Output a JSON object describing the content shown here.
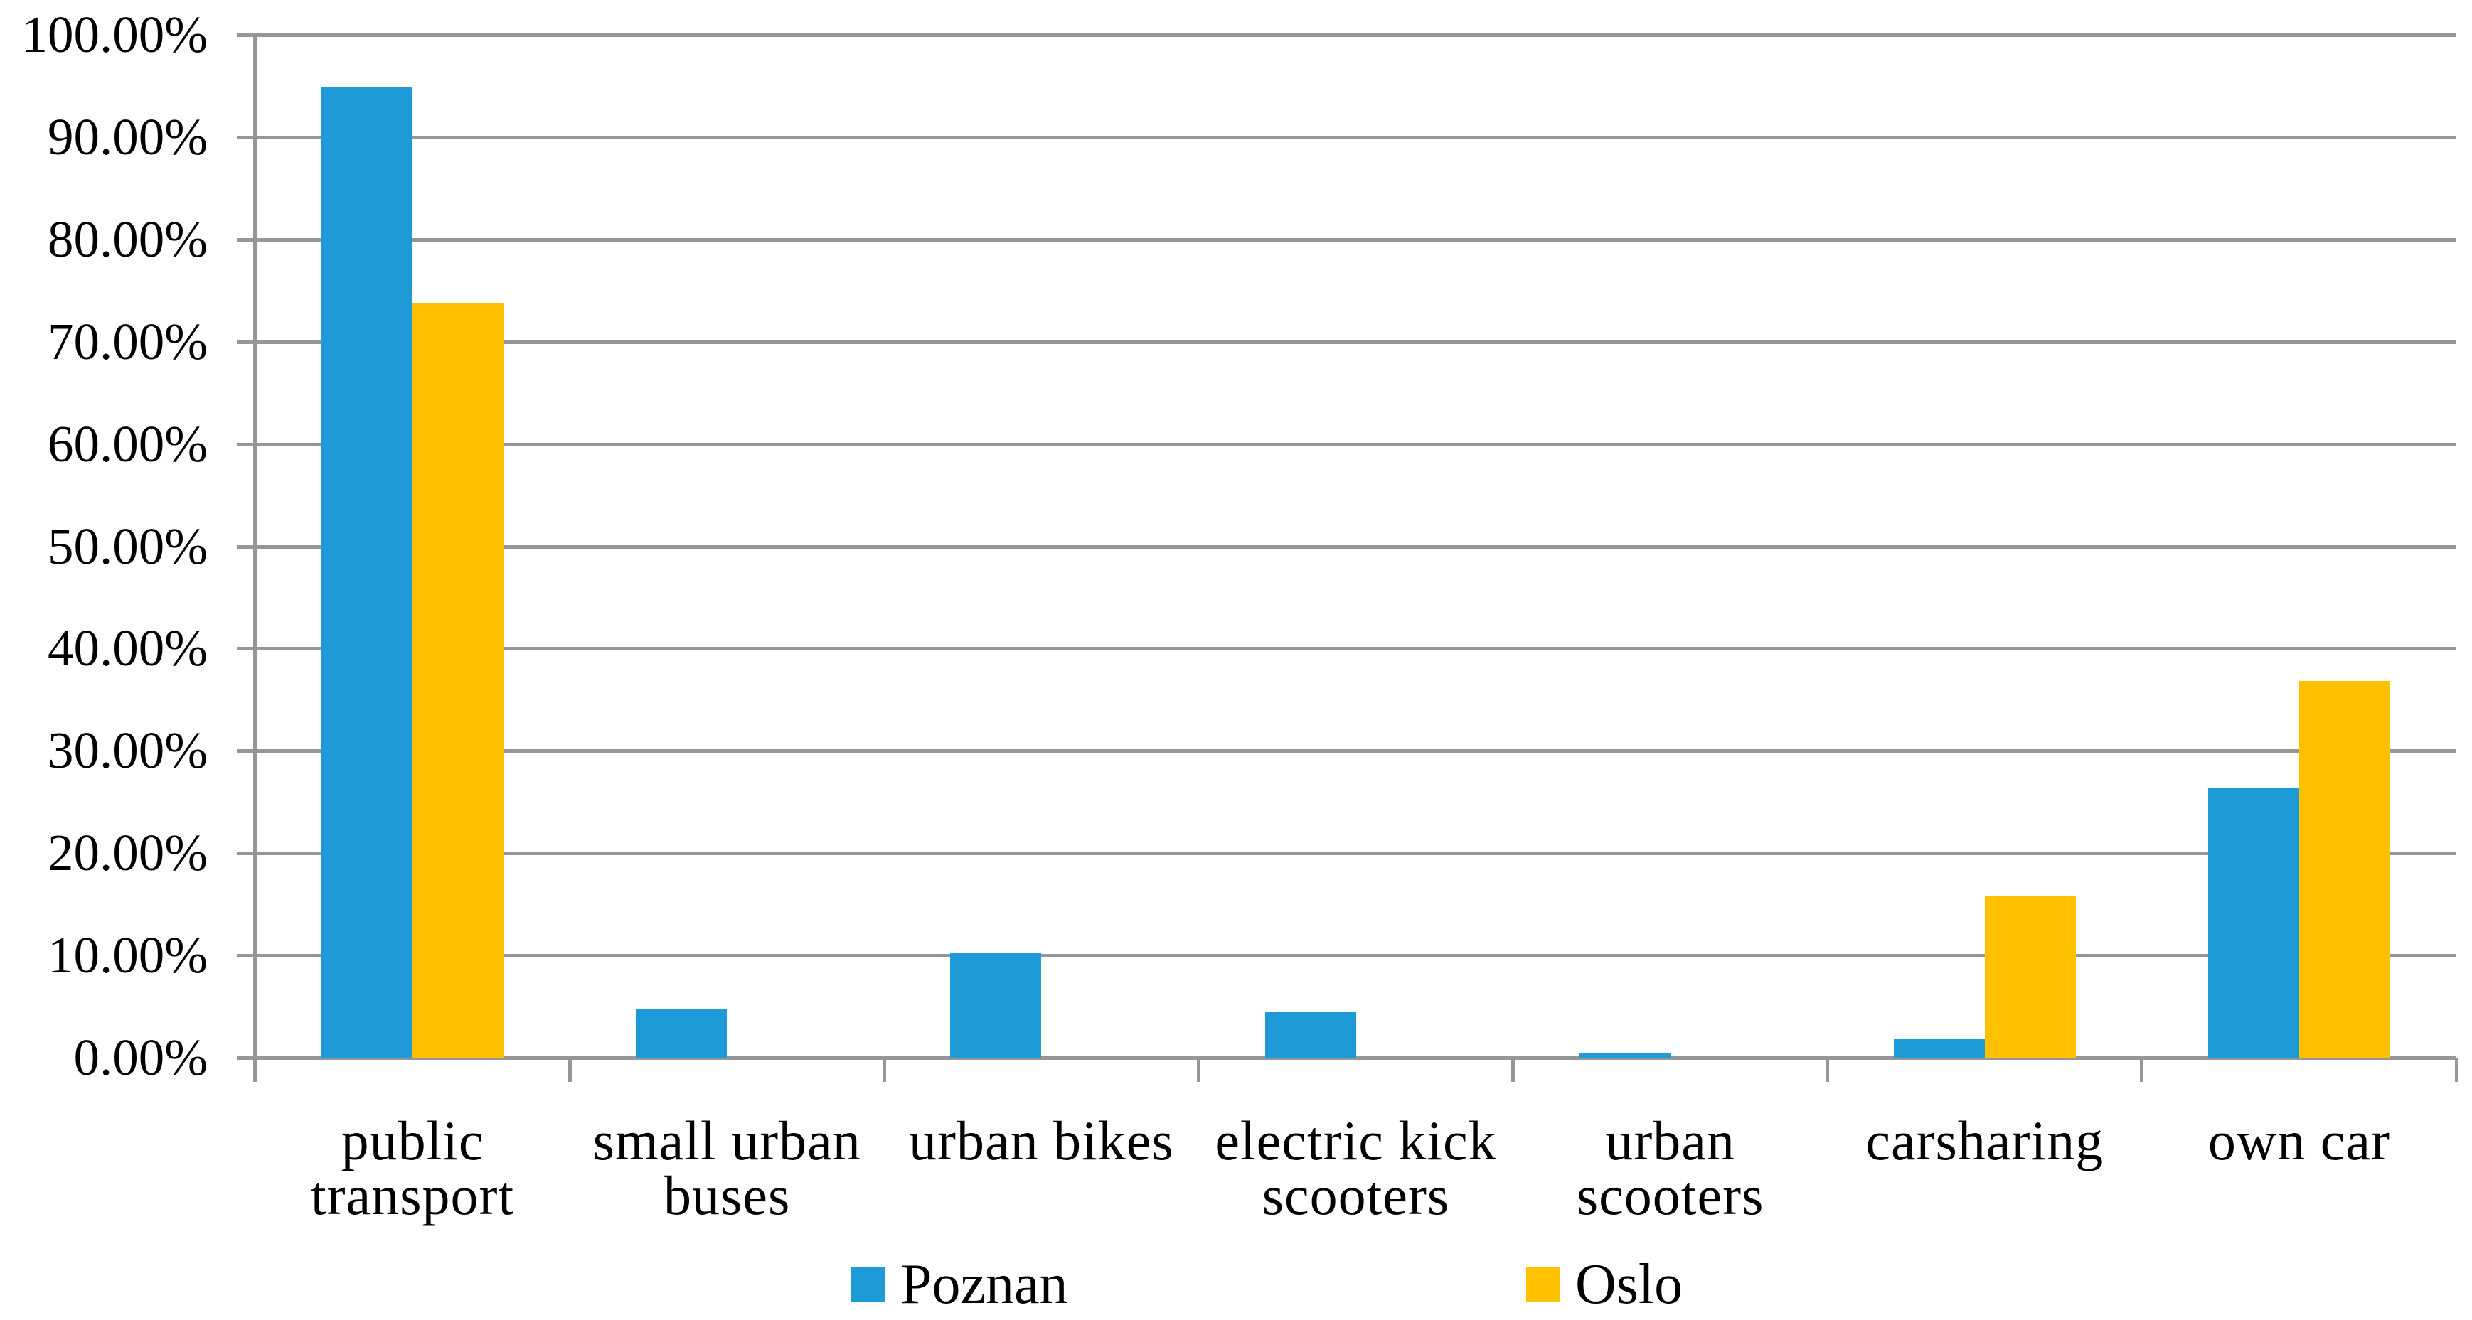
{
  "chart_data": {
    "type": "bar",
    "title": "",
    "xlabel": "",
    "ylabel": "",
    "categories": [
      "public transport",
      "small urban buses",
      "urban bikes",
      "electric kick scooters",
      "urban scooters",
      "carsharing",
      "own car"
    ],
    "category_display_lines": [
      [
        "public",
        "transport"
      ],
      [
        "small urban",
        "buses"
      ],
      [
        "urban bikes"
      ],
      [
        "electric kick",
        "scooters"
      ],
      [
        "urban",
        "scooters"
      ],
      [
        "carsharing"
      ],
      [
        "own car"
      ]
    ],
    "series": [
      {
        "name": "Poznan",
        "color": "#1E9AD6",
        "values": [
          94.9,
          4.7,
          10.2,
          4.5,
          0.4,
          1.8,
          26.4
        ]
      },
      {
        "name": "Oslo",
        "color": "#FFC000",
        "values": [
          73.8,
          0,
          0,
          0,
          0,
          15.8,
          36.8
        ]
      }
    ],
    "ylim": [
      0,
      100
    ],
    "y_tick_step": 10,
    "y_tick_labels": [
      "0.00%",
      "10.00%",
      "20.00%",
      "30.00%",
      "40.00%",
      "50.00%",
      "60.00%",
      "70.00%",
      "80.00%",
      "90.00%",
      "100.00%"
    ],
    "grid": true,
    "legend_position": "bottom"
  },
  "colors": {
    "gridline": "#969696",
    "axis": "#969696",
    "text": "#000000",
    "background": "#FFFFFF"
  }
}
